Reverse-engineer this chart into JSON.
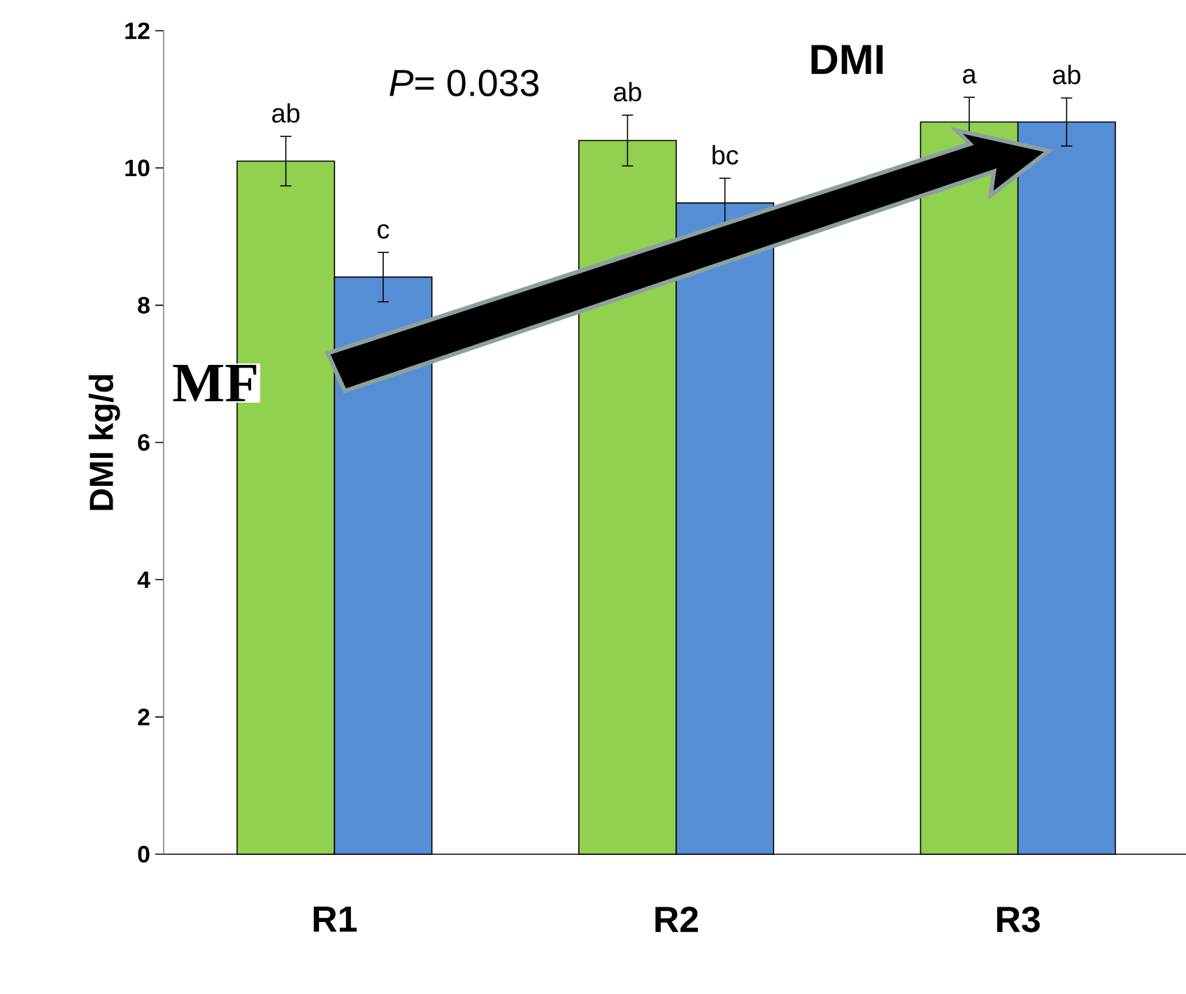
{
  "chart_data": {
    "type": "bar",
    "title": "DMI",
    "ylabel": "DMI kg/d",
    "categories": [
      "R1",
      "R2",
      "R3"
    ],
    "series": [
      {
        "color": "#92d050",
        "values": [
          10.1,
          10.4,
          10.67
        ],
        "errors": [
          0.36,
          0.37,
          0.36
        ]
      },
      {
        "color": "#558ed5",
        "values": [
          8.41,
          9.49,
          10.67
        ],
        "errors": [
          0.36,
          0.36,
          0.35
        ]
      }
    ],
    "ylim": [
      0,
      12
    ],
    "yticks": [
      0,
      2,
      4,
      6,
      8,
      10,
      12
    ],
    "annotations": [
      "ab",
      "c",
      "ab",
      "bc",
      "a",
      "ab",
      "*P*= 0.033",
      "MF"
    ],
    "grid": false
  }
}
